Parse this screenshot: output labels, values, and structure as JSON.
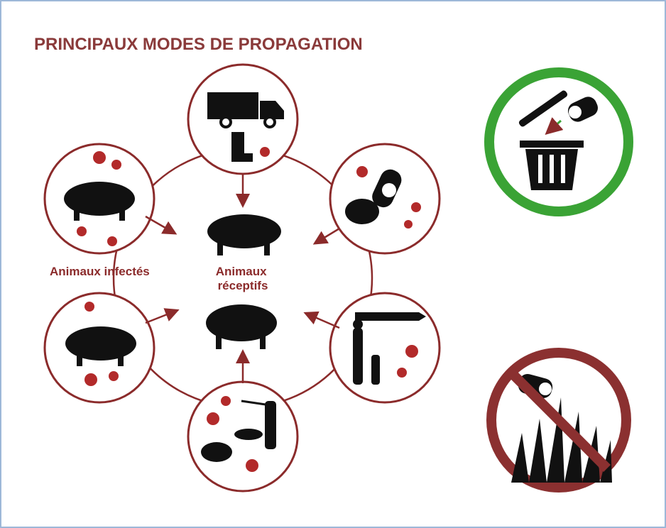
{
  "header": {
    "title": "PRINCIPAUX MODES DE PROPAGATION"
  },
  "labels": {
    "infected": "Animaux infectés",
    "receptive": [
      "Animaux",
      "réceptifs"
    ]
  }
}
